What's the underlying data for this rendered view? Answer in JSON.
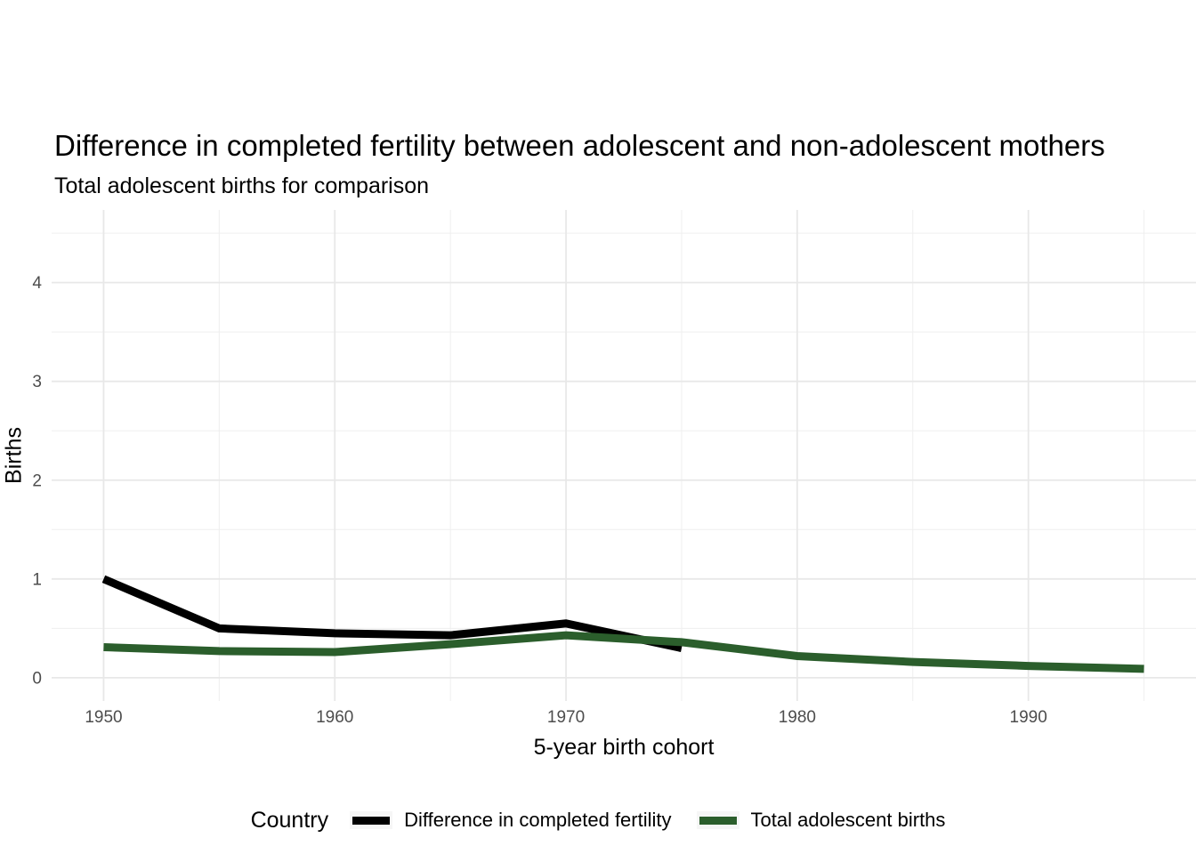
{
  "chart_data": {
    "type": "line",
    "title": "Difference in completed fertility between adolescent and non-adolescent mothers",
    "subtitle": "Total adolescent births for comparison",
    "xlabel": "5-year birth cohort",
    "ylabel": "Births",
    "legend_title": "Country",
    "legend_position": "bottom",
    "grid": true,
    "background": "#ffffff",
    "grid_major_color": "#e8e8e8",
    "grid_minor_color": "#efefef",
    "tick_label_color": "#4d4d4d",
    "xlim": [
      1947.75,
      1997.25
    ],
    "ylim": [
      -0.235,
      4.735
    ],
    "x_ticks": [
      1950,
      1960,
      1970,
      1980,
      1990
    ],
    "x_minor_ticks": [
      1955,
      1965,
      1975,
      1985,
      1995
    ],
    "y_ticks": [
      0,
      1,
      2,
      3,
      4
    ],
    "y_minor_ticks": [
      0.5,
      1.5,
      2.5,
      3.5,
      4.5
    ],
    "x": [
      1950,
      1955,
      1960,
      1965,
      1970,
      1975,
      1980,
      1985,
      1990,
      1995
    ],
    "series": [
      {
        "name": "Difference in completed fertility",
        "color": "#000000",
        "values": [
          1.0,
          0.5,
          0.45,
          0.43,
          0.55,
          0.3,
          null,
          null,
          null,
          null
        ]
      },
      {
        "name": "Total adolescent births",
        "color": "#2b5e2c",
        "values": [
          0.31,
          0.27,
          0.26,
          0.34,
          0.43,
          0.36,
          0.22,
          0.16,
          0.12,
          0.09
        ]
      }
    ]
  }
}
